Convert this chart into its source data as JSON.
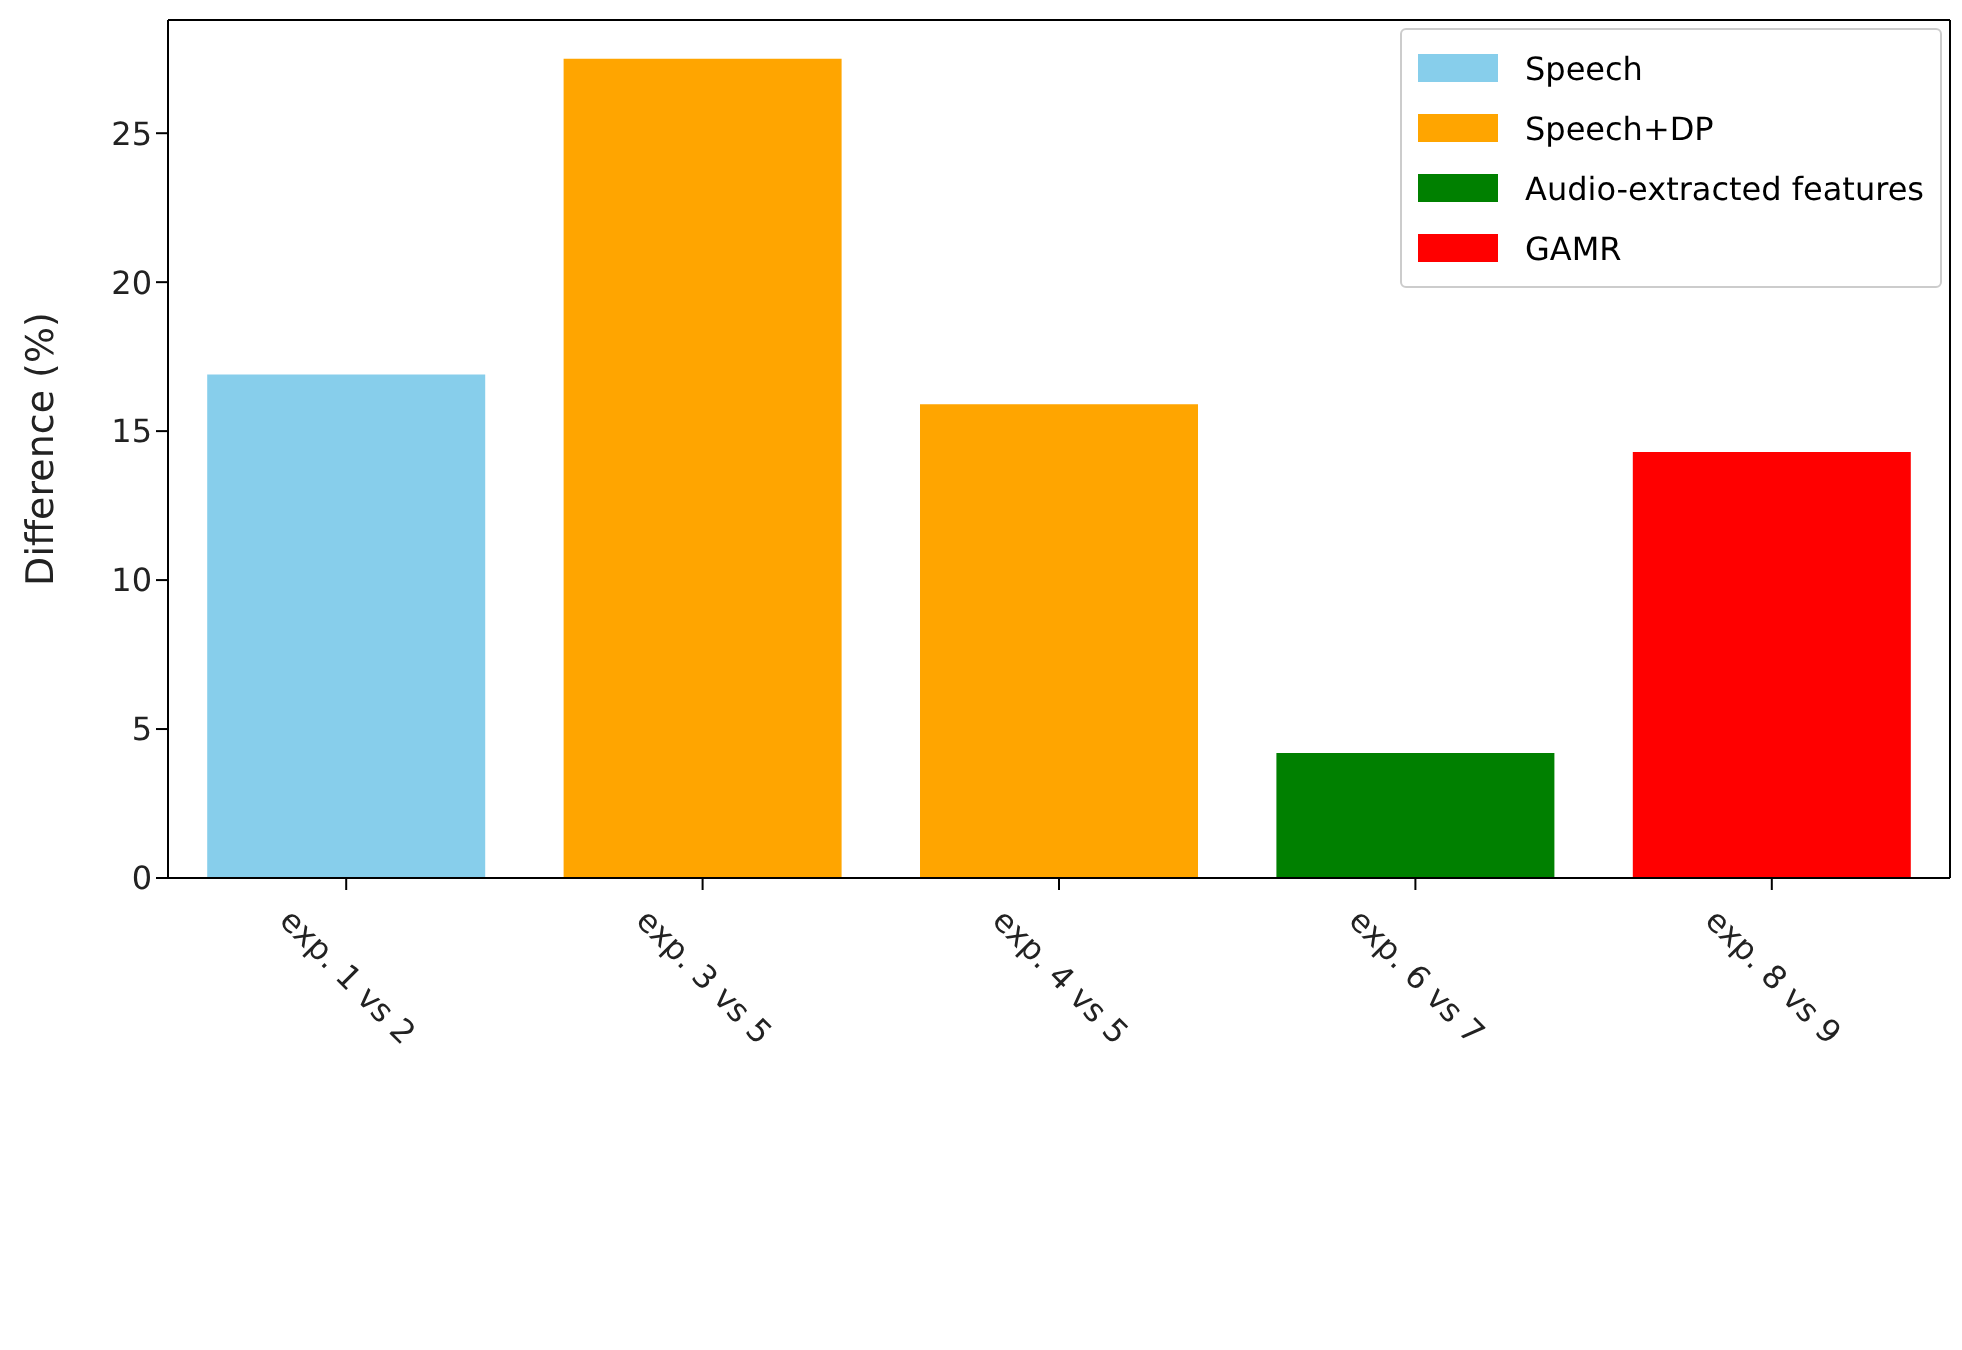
{
  "chart_data": {
    "type": "bar",
    "ylabel": "Difference (%)",
    "categories": [
      "exp. 1 vs 2",
      "exp. 3 vs 5",
      "exp. 4 vs 5",
      "exp. 6 vs 7",
      "exp. 8 vs 9"
    ],
    "series": [
      {
        "name": "Speech",
        "color": "#87ceeb",
        "values": [
          16.9,
          null,
          null,
          null,
          null
        ]
      },
      {
        "name": "Speech+DP",
        "color": "#ffa500",
        "values": [
          null,
          27.5,
          15.9,
          null,
          null
        ]
      },
      {
        "name": "Audio-extracted features",
        "color": "#008000",
        "values": [
          null,
          null,
          null,
          4.2,
          null
        ]
      },
      {
        "name": "GAMR",
        "color": "#ff0000",
        "values": [
          null,
          null,
          null,
          null,
          14.3
        ]
      }
    ],
    "ylim": [
      0,
      28.8
    ],
    "yticks": [
      0,
      5,
      10,
      15,
      20,
      25
    ],
    "grid": false,
    "legend": "top right"
  }
}
